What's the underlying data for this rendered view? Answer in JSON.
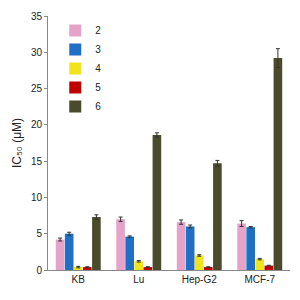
{
  "chart_data": {
    "type": "bar",
    "y_label": "IC₅₀ (μM)",
    "categories": [
      "KB",
      "Lu",
      "Hep-G2",
      "MCF-7"
    ],
    "series": [
      {
        "name": "2",
        "color": "#e6a3c8",
        "values": [
          4.2,
          7.0,
          6.6,
          6.4
        ],
        "errors": [
          0.2,
          0.3,
          0.3,
          0.4
        ]
      },
      {
        "name": "3",
        "color": "#1f6fc4",
        "values": [
          5.0,
          4.6,
          6.0,
          5.9
        ],
        "errors": [
          0.2,
          0.1,
          0.2,
          0.1
        ]
      },
      {
        "name": "4",
        "color": "#f2e41c",
        "values": [
          0.4,
          1.2,
          2.0,
          1.5
        ],
        "errors": [
          0.1,
          0.1,
          0.1,
          0.1
        ]
      },
      {
        "name": "5",
        "color": "#c00000",
        "values": [
          0.4,
          0.4,
          0.4,
          0.6
        ],
        "errors": [
          0.05,
          0.05,
          0.05,
          0.05
        ]
      },
      {
        "name": "6",
        "color": "#4a4a2c",
        "values": [
          7.3,
          18.6,
          14.7,
          29.2
        ],
        "errors": [
          0.3,
          0.3,
          0.4,
          1.3
        ]
      }
    ],
    "ylim": [
      0,
      35
    ],
    "yticks": [
      0,
      5,
      10,
      15,
      20,
      25,
      30,
      35
    ],
    "grid": false,
    "legend": "top-left"
  }
}
